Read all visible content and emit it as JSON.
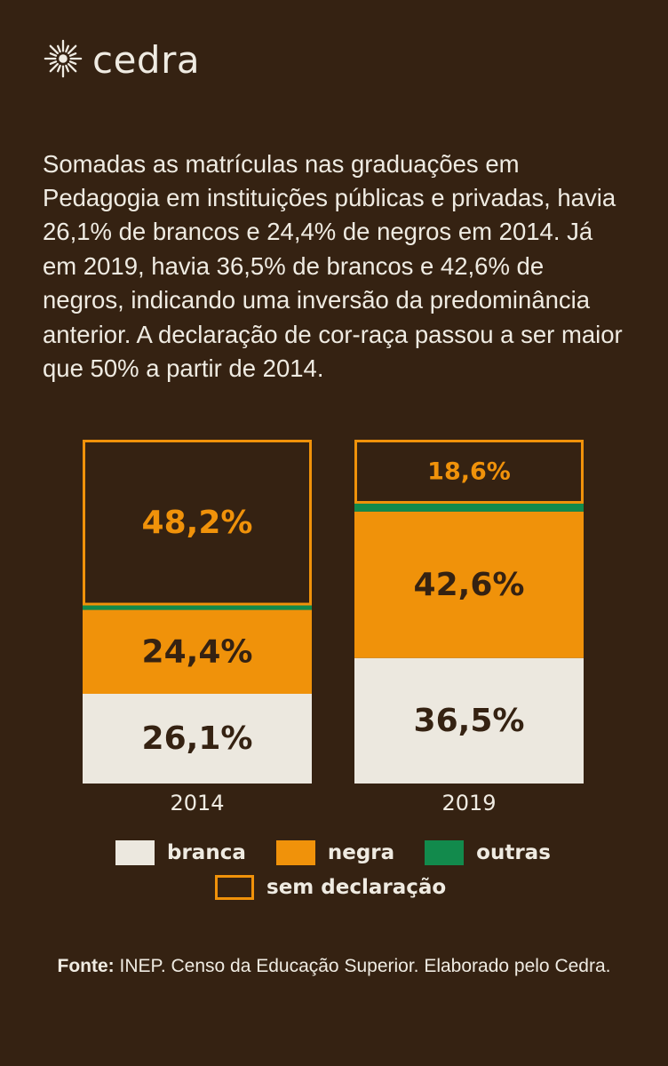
{
  "brand": {
    "name": "cedra",
    "icon": "sun-burst-icon"
  },
  "intro_text": "Somadas as matrículas nas graduações em Pedagogia em instituições públicas e privadas, havia 26,1% de brancos e 24,4% de negros em 2014. Já em 2019, havia 36,5% de brancos e 42,6% de negros, indicando uma inversão da predominância anterior. A declaração de cor-raça passou a ser maior que 50% a partir de 2014.",
  "colors": {
    "background": "#352212",
    "branca": "#ece8df",
    "negra": "#f0920a",
    "outras": "#128a4c",
    "sem_declaracao": "#f0920a",
    "text_light": "#efebe2",
    "text_dark": "#352212"
  },
  "chart_data": {
    "type": "bar",
    "stacked": true,
    "categories": [
      "2014",
      "2019"
    ],
    "series": [
      {
        "name": "branca",
        "values": [
          26.1,
          36.5
        ],
        "labels": [
          "26,1%",
          "36,5%"
        ]
      },
      {
        "name": "negra",
        "values": [
          24.4,
          42.6
        ],
        "labels": [
          "24,4%",
          "42,6%"
        ]
      },
      {
        "name": "outras",
        "values": [
          1.3,
          2.3
        ],
        "labels": [
          "",
          ""
        ]
      },
      {
        "name": "sem declaração",
        "values": [
          48.2,
          18.6
        ],
        "labels": [
          "48,2%",
          "18,6%"
        ]
      }
    ],
    "ylim": [
      0,
      100
    ],
    "grid": false,
    "legend_position": "bottom"
  },
  "legend": {
    "branca": "branca",
    "negra": "negra",
    "outras": "outras",
    "sem_declaracao": "sem declaração"
  },
  "source": {
    "label": "Fonte:",
    "text": " INEP. Censo da Educação Superior. Elaborado pelo Cedra."
  }
}
